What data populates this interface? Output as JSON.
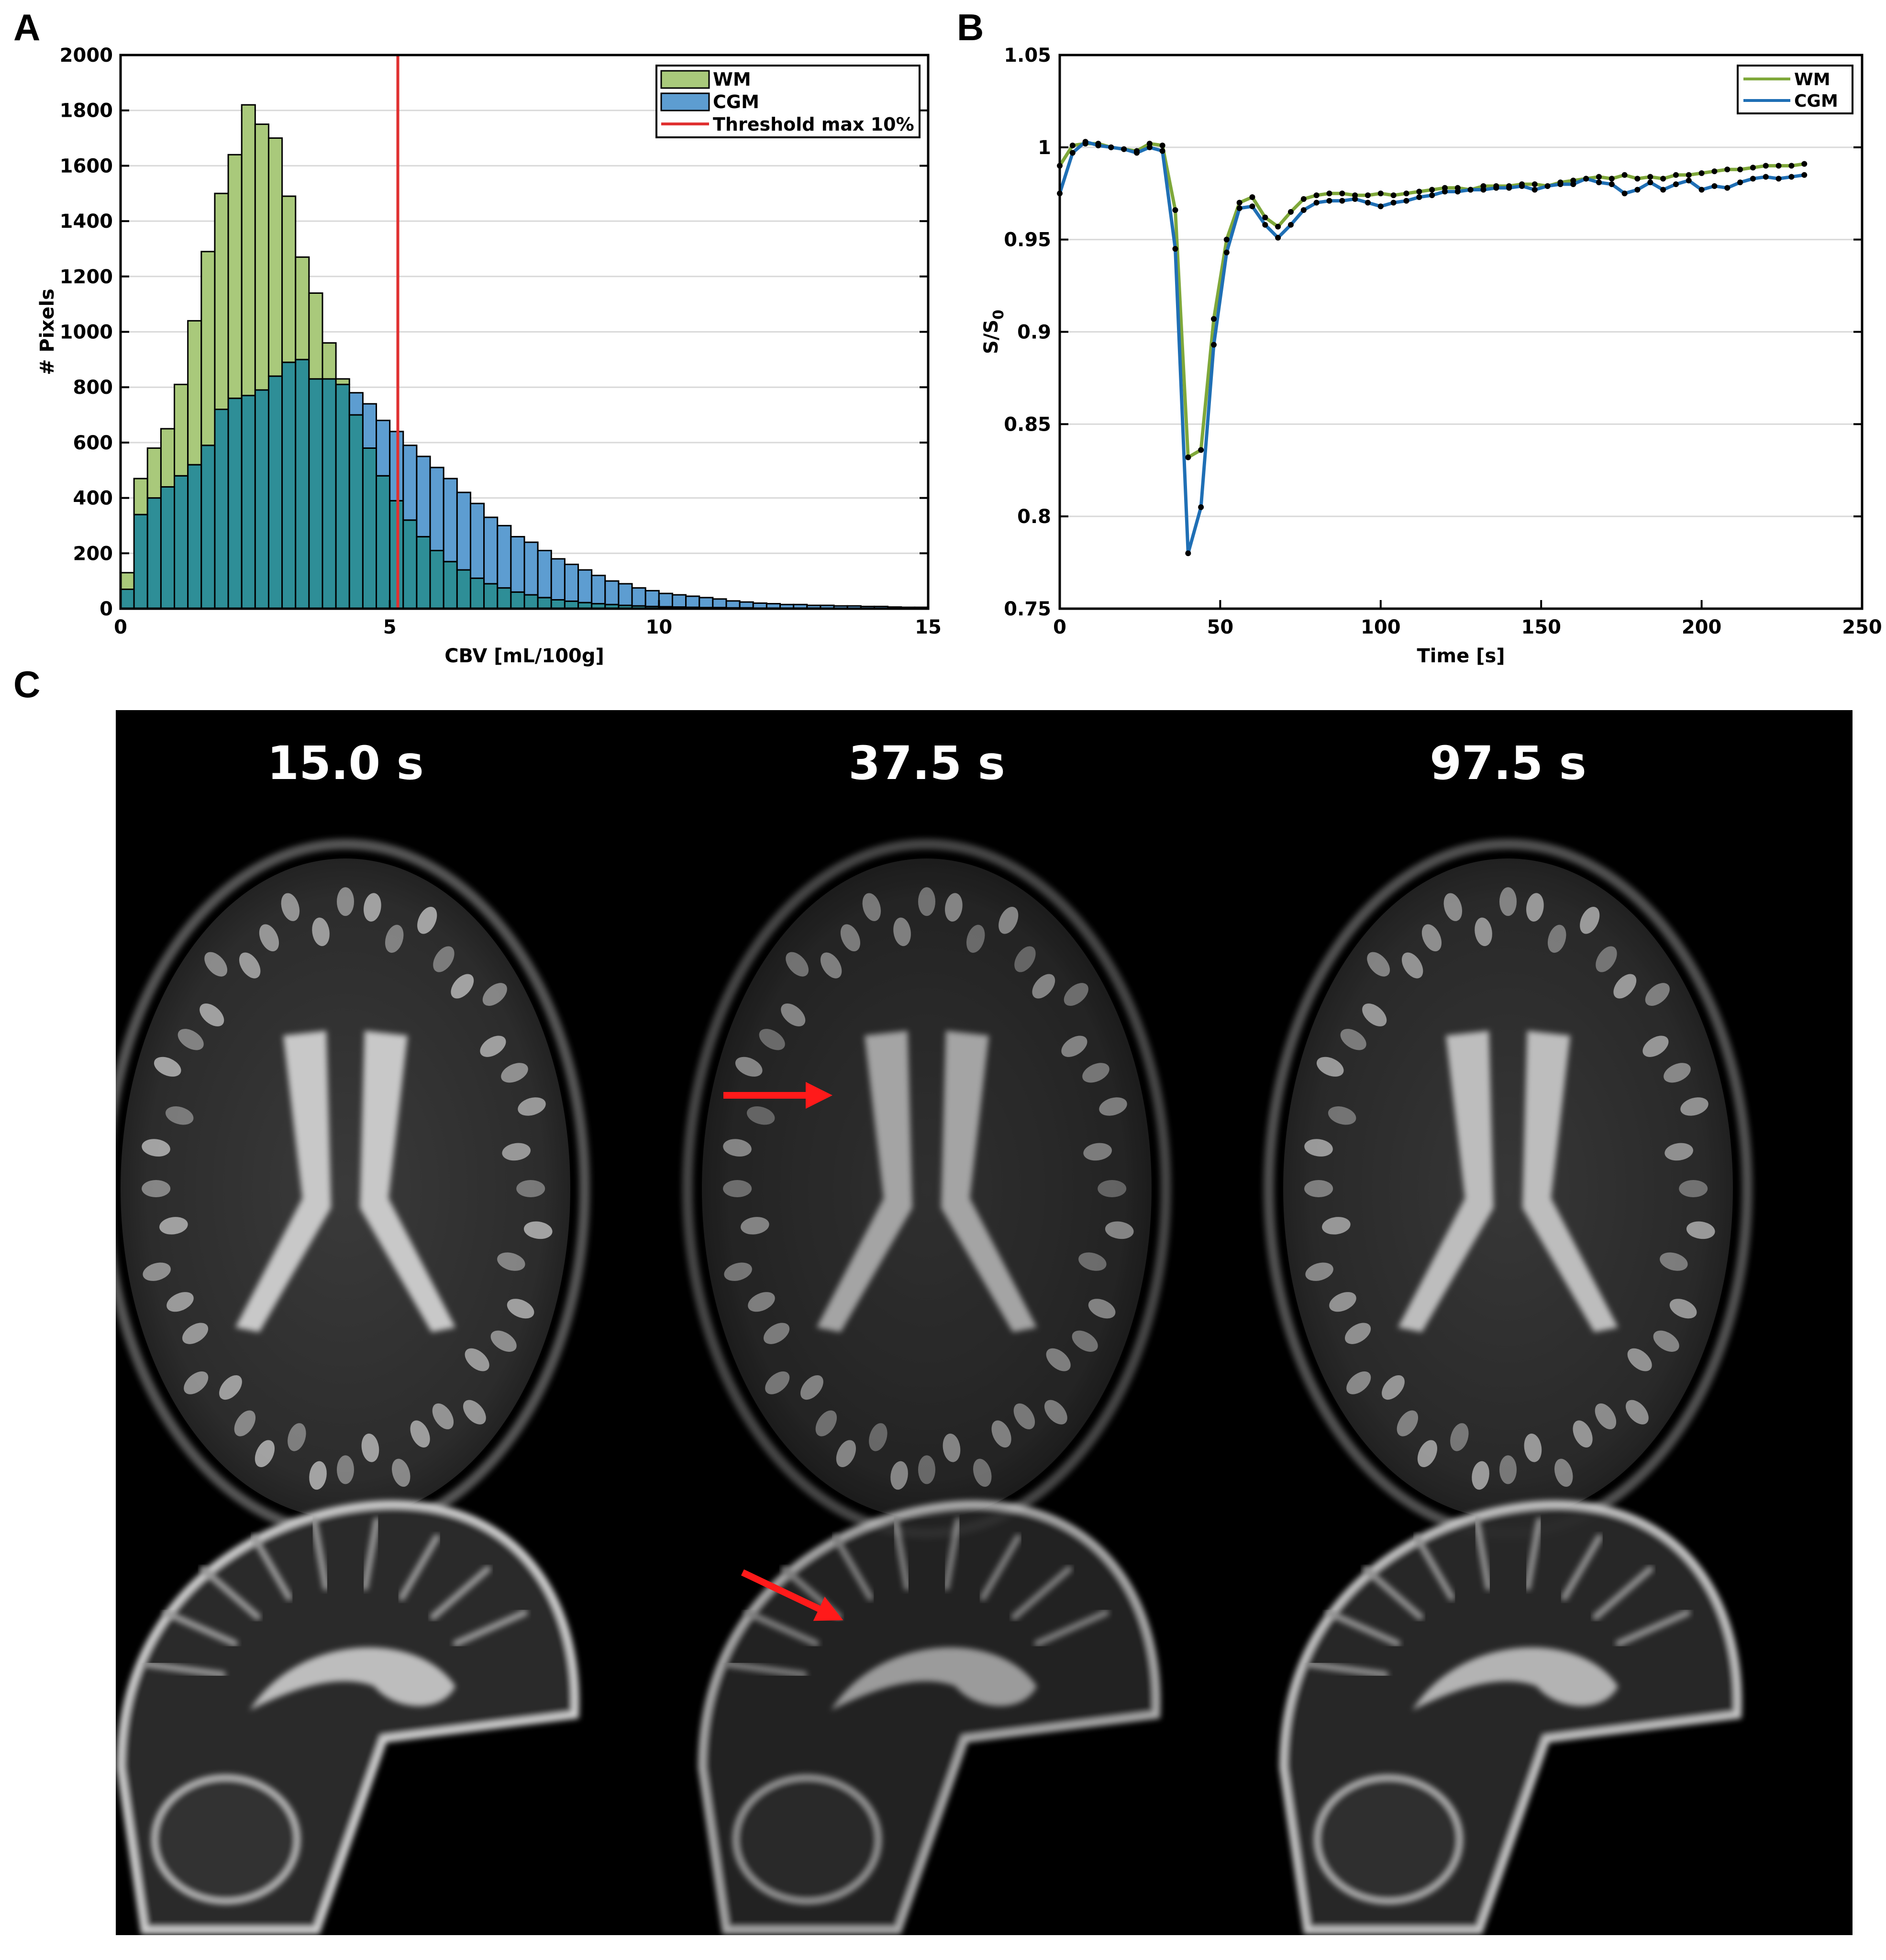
{
  "panels": {
    "a_label": "A",
    "b_label": "B",
    "c_label": "C"
  },
  "chart_data": [
    {
      "type": "bar",
      "panel": "A",
      "xlabel": "CBV [mL/100g]",
      "ylabel": "# Pixels",
      "xlim": [
        0,
        15
      ],
      "ylim": [
        0,
        2000
      ],
      "xticks": [
        0,
        5,
        10,
        15
      ],
      "yticks": [
        0,
        200,
        400,
        600,
        800,
        1000,
        1200,
        1400,
        1600,
        1800,
        2000
      ],
      "grid": "horizontal",
      "legend_position": "top-right",
      "bin_width": 0.25,
      "bin_start": 0,
      "series": [
        {
          "name": "WM",
          "color": "#a9c97b",
          "values": [
            130,
            470,
            580,
            650,
            810,
            1040,
            1290,
            1500,
            1640,
            1820,
            1750,
            1700,
            1490,
            1270,
            1140,
            960,
            830,
            700,
            580,
            480,
            390,
            320,
            260,
            210,
            170,
            140,
            110,
            90,
            75,
            60,
            50,
            40,
            32,
            27,
            22,
            18,
            15,
            12,
            10,
            8,
            7,
            6,
            5,
            4,
            4,
            3,
            3,
            2,
            2,
            2,
            2,
            2,
            1,
            1,
            1,
            1,
            1,
            1,
            1,
            1
          ]
        },
        {
          "name": "CGM",
          "color": "#5d9dd1",
          "values": [
            70,
            340,
            400,
            440,
            480,
            520,
            590,
            720,
            760,
            770,
            790,
            840,
            890,
            900,
            830,
            830,
            810,
            780,
            740,
            680,
            640,
            590,
            550,
            510,
            470,
            420,
            380,
            330,
            300,
            260,
            240,
            210,
            180,
            160,
            140,
            120,
            100,
            90,
            75,
            65,
            55,
            50,
            45,
            40,
            35,
            28,
            24,
            20,
            18,
            15,
            15,
            12,
            12,
            10,
            10,
            8,
            8,
            6,
            5,
            5
          ]
        }
      ],
      "overlap_color": "#2e8e97",
      "threshold": {
        "name": "Threshold max 10%",
        "x": 5.15,
        "color": "#e03030"
      }
    },
    {
      "type": "line",
      "panel": "B",
      "xlabel": "Time [s]",
      "ylabel": "S/S0",
      "ylabel_main": "S/S",
      "ylabel_sub": "0",
      "xlim": [
        0,
        250
      ],
      "ylim": [
        0.75,
        1.05
      ],
      "xticks": [
        0,
        50,
        100,
        150,
        200,
        250
      ],
      "yticks": [
        0.75,
        0.8,
        0.85,
        0.9,
        0.95,
        1,
        1.05
      ],
      "ytick_labels": [
        "0.75",
        "0.8",
        "0.85",
        "0.9",
        "0.95",
        "1",
        "1.05"
      ],
      "grid": "horizontal",
      "legend_position": "top-right",
      "series": [
        {
          "name": "WM",
          "color": "#7fa83a",
          "x": [
            0,
            4,
            8,
            12,
            16,
            20,
            24,
            28,
            32,
            36,
            40,
            44,
            48,
            52,
            56,
            60,
            64,
            68,
            72,
            76,
            80,
            84,
            88,
            92,
            96,
            100,
            104,
            108,
            112,
            116,
            120,
            124,
            128,
            132,
            136,
            140,
            144,
            148,
            152,
            156,
            160,
            164,
            168,
            172,
            176,
            180,
            184,
            188,
            192,
            196,
            200,
            204,
            208,
            212,
            216,
            220,
            224,
            228,
            232
          ],
          "y": [
            0.99,
            1.001,
            1.002,
            1.002,
            1.0,
            0.999,
            0.998,
            1.002,
            1.001,
            0.966,
            0.832,
            0.836,
            0.907,
            0.95,
            0.97,
            0.973,
            0.962,
            0.957,
            0.965,
            0.972,
            0.974,
            0.975,
            0.975,
            0.974,
            0.974,
            0.975,
            0.974,
            0.975,
            0.976,
            0.977,
            0.978,
            0.978,
            0.977,
            0.979,
            0.979,
            0.979,
            0.98,
            0.98,
            0.979,
            0.981,
            0.982,
            0.983,
            0.984,
            0.983,
            0.985,
            0.983,
            0.984,
            0.983,
            0.985,
            0.985,
            0.986,
            0.987,
            0.988,
            0.988,
            0.989,
            0.99,
            0.99,
            0.99,
            0.991
          ]
        },
        {
          "name": "CGM",
          "color": "#1f6fb5",
          "x": [
            0,
            4,
            8,
            12,
            16,
            20,
            24,
            28,
            32,
            36,
            40,
            44,
            48,
            52,
            56,
            60,
            64,
            68,
            72,
            76,
            80,
            84,
            88,
            92,
            96,
            100,
            104,
            108,
            112,
            116,
            120,
            124,
            128,
            132,
            136,
            140,
            144,
            148,
            152,
            156,
            160,
            164,
            168,
            172,
            176,
            180,
            184,
            188,
            192,
            196,
            200,
            204,
            208,
            212,
            216,
            220,
            224,
            228,
            232
          ],
          "y": [
            0.975,
            0.997,
            1.003,
            1.001,
            1.0,
            0.999,
            0.997,
            1.0,
            0.998,
            0.945,
            0.78,
            0.805,
            0.893,
            0.943,
            0.967,
            0.968,
            0.958,
            0.951,
            0.958,
            0.966,
            0.97,
            0.971,
            0.971,
            0.972,
            0.97,
            0.968,
            0.97,
            0.971,
            0.973,
            0.974,
            0.976,
            0.976,
            0.977,
            0.977,
            0.978,
            0.978,
            0.979,
            0.977,
            0.979,
            0.98,
            0.98,
            0.983,
            0.981,
            0.98,
            0.975,
            0.977,
            0.981,
            0.977,
            0.98,
            0.982,
            0.977,
            0.979,
            0.978,
            0.981,
            0.983,
            0.984,
            0.983,
            0.984,
            0.985
          ]
        }
      ]
    }
  ],
  "mri": {
    "time_labels": [
      "15.0 s",
      "37.5 s",
      "97.5 s"
    ],
    "arrow_color": "#ff1a1a"
  }
}
